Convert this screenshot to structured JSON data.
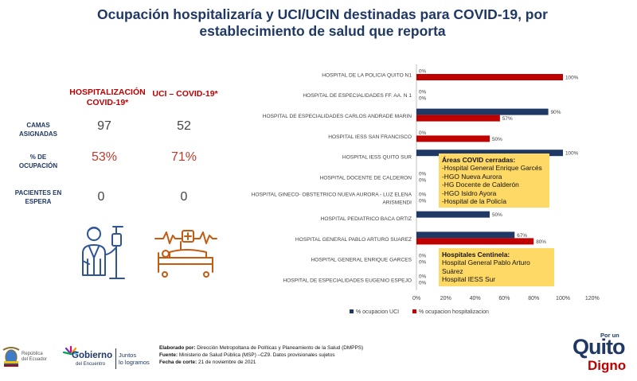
{
  "header": {
    "title_line1": "Ocupación hospitalizaría y UCI/UCIN destinadas para COVID-19, por",
    "title_line2": "establecimiento de salud que reporta"
  },
  "stats": {
    "hosp_header_line1": "HOSPITALIZACIÓN",
    "hosp_header_line2": "COVID-19*",
    "uci_header": "UCI – COVID-19*",
    "rows": [
      {
        "label_line1": "CAMAS",
        "label_line2": "ASIGNADAS",
        "hosp": "97",
        "uci": "52"
      },
      {
        "label_line1": "% DE",
        "label_line2": "OCUPACIÓN",
        "hosp": "53%",
        "uci": "71%"
      },
      {
        "label_line1": "PACIENTES EN",
        "label_line2": "ESPERA",
        "hosp": "0",
        "uci": "0"
      }
    ]
  },
  "chart_data": {
    "type": "bar",
    "orientation": "horizontal",
    "categories": [
      "HOSPITAL DE LA POLICIA QUITO N1",
      "HOSPITAL DE ESPECIALIDADES FF. AA. N 1",
      "HOSPITAL DE ESPECIALIDADES CARLOS ANDRADE MARIN",
      "HOSPITAL IESS SAN FRANCISCO",
      "HOSPITAL IESS QUITO SUR",
      "HOSPITAL DOCENTE DE CALDERON",
      "HOSPITAL GINECO- OBSTETRICO NUEVA AURORA - LUZ ELENA ARISMENDI",
      "HOSPITAL PEDIATRICO BACA ORTIZ",
      "HOSPITAL GENERAL PABLO ARTURO SUAREZ",
      "HOSPITAL GENERAL ENRIQUE GARCES",
      "HOSPITAL DE ESPECIALIDADES EUGENIO ESPEJO"
    ],
    "category_lines": [
      [
        "HOSPITAL DE LA POLICIA QUITO N1"
      ],
      [
        "HOSPITAL DE ESPECIALIDADES FF. AA. N 1"
      ],
      [
        "HOSPITAL DE ESPECIALIDADES CARLOS ANDRADE MARIN"
      ],
      [
        "HOSPITAL IESS SAN FRANCISCO"
      ],
      [
        "HOSPITAL IESS QUITO SUR"
      ],
      [
        "HOSPITAL DOCENTE DE CALDERON"
      ],
      [
        "HOSPITAL GINECO- OBSTETRICO NUEVA AURORA - LUZ ELENA",
        "ARISMENDI"
      ],
      [
        "HOSPITAL PEDIATRICO BACA ORTIZ"
      ],
      [
        "HOSPITAL GENERAL PABLO ARTURO SUAREZ"
      ],
      [
        "HOSPITAL GENERAL ENRIQUE GARCES"
      ],
      [
        "HOSPITAL DE ESPECIALIDADES EUGENIO ESPEJO"
      ]
    ],
    "series": [
      {
        "name": "% ocupacion UCI",
        "color": "#1f3864",
        "values": [
          0,
          0,
          90,
          0,
          100,
          null,
          null,
          50,
          67,
          null,
          null
        ],
        "labels": [
          "0%",
          "0%",
          "90%",
          "0%",
          "100%",
          null,
          null,
          "50%",
          "67%",
          null,
          null
        ]
      },
      {
        "name": "% ocupacion hospitalizacion",
        "color": "#c00000",
        "values": [
          100,
          0,
          57,
          50,
          null,
          null,
          null,
          null,
          80,
          null,
          null
        ],
        "labels": [
          "100%",
          "0%",
          "57%",
          "50%",
          null,
          null,
          null,
          null,
          "80%",
          null,
          null
        ]
      }
    ],
    "hidden_labels": [
      {
        "row": 5,
        "labels": [
          "0%",
          "0%"
        ]
      },
      {
        "row": 6,
        "labels": [
          "0%",
          "0%"
        ]
      },
      {
        "row": 9,
        "labels": [
          "0%",
          "0%"
        ]
      },
      {
        "row": 10,
        "labels": [
          "0%",
          "0%"
        ]
      }
    ],
    "xlim": [
      0,
      120
    ],
    "xticks": [
      "0%",
      "20%",
      "40%",
      "60%",
      "80%",
      "100%",
      "120%"
    ],
    "legend_position": "bottom-left"
  },
  "callouts": {
    "closed": {
      "title": "Áreas COVID cerradas:",
      "items": [
        "-Hospital General Enrique Garcés",
        "-HGO Nueva Aurora",
        "-HG Docente de Calderón",
        "-HGO Isidro Ayora",
        "-Hospital de la Policía"
      ]
    },
    "sentinel": {
      "title": "Hospitales Centinela:",
      "items": [
        "Hospital General Pablo Arturo Suárez",
        "Hospital IESS Sur"
      ]
    }
  },
  "footer": {
    "line1_label": "Elaborado por:",
    "line1_text": " Dirección Metropoltana de Políticas y Planeamiento de la Salud (DMPPS)",
    "line2_label": "Fuente:",
    "line2_text": " Ministerio de Salud Pública (MSP) –CZ9. Datos provisionales sujetos",
    "line3_label": "Fecha de corte:",
    "line3_text": " 21 de noviembre de 2021"
  },
  "logos": {
    "ecuador_text_line1": "República",
    "ecuador_text_line2": "del Ecuador",
    "gobierno_word": "Gobierno",
    "gobierno_sub": "del Encuentro",
    "gobierno_slogan_line1": "Juntos",
    "gobierno_slogan_line2": "lo logramos",
    "quito_top": "Por un",
    "quito_main": "Quito",
    "quito_sub": "Digno"
  },
  "colors": {
    "navy": "#1f3864",
    "red": "#c00000",
    "callout": "#ffd966"
  }
}
